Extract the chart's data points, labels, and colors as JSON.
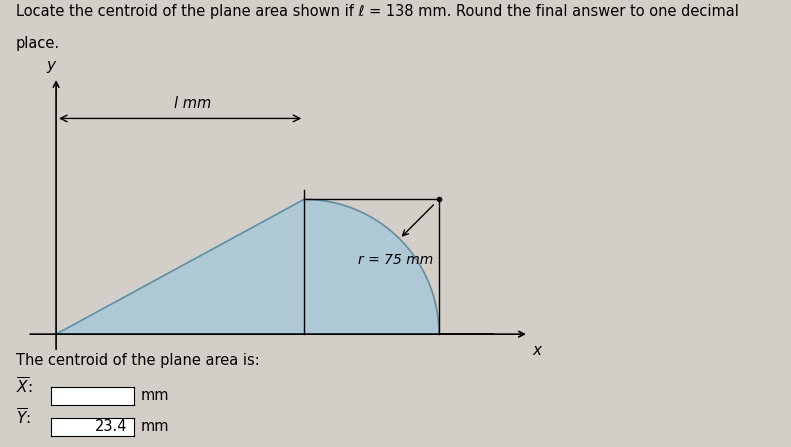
{
  "background_color": "#d3cfc8",
  "shape_fill_color": "#aac8d8",
  "shape_edge_color": "#6090a0",
  "axis_color": "black",
  "axis_label_x": "x",
  "axis_label_y": "y",
  "l_label": "l mm",
  "r_label": "r = 75 mm",
  "centroid_label": "The centroid of the plane area is:",
  "X_value": "",
  "Y_value": "23.4",
  "unit": "mm",
  "l_value": 138,
  "r_value": 75,
  "title_line1": "Locate the centroid of the plane area shown if l = 138 mm. Round the final answer to one decimal",
  "title_line2": "place.",
  "title_fontsize": 10.5
}
